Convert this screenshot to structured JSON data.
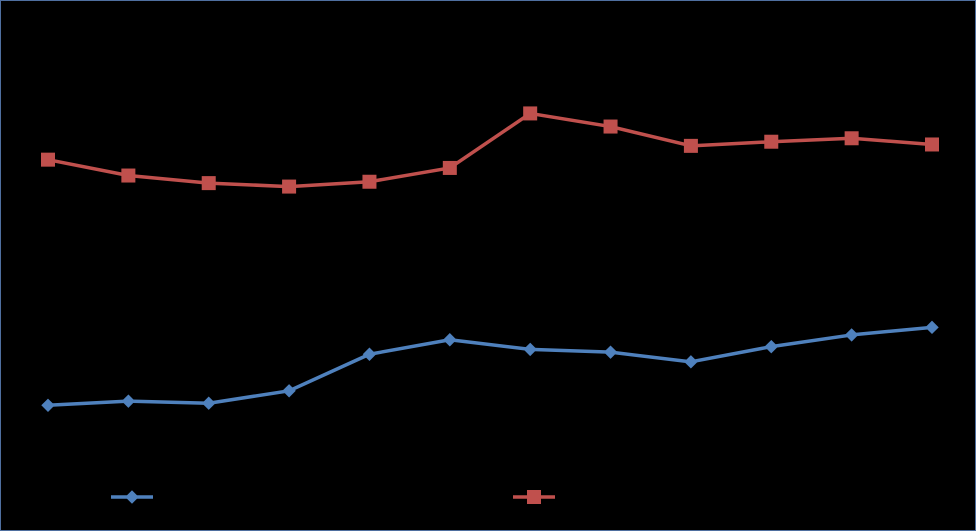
{
  "chart_data": {
    "type": "line",
    "title": "",
    "xlabel": "",
    "ylabel": "",
    "categories": [
      "",
      "",
      "",
      "",
      "",
      "",
      "",
      "",
      "",
      "",
      "",
      ""
    ],
    "ylim": [
      0,
      5
    ],
    "y_ticks": [
      0,
      1,
      2,
      3,
      4,
      5
    ],
    "grid": false,
    "legend_position": "bottom",
    "series": [
      {
        "name": "",
        "color": "#4f81bd",
        "marker": "diamond",
        "values": [
          0.3,
          0.36,
          0.33,
          0.51,
          1.04,
          1.25,
          1.11,
          1.07,
          0.93,
          1.15,
          1.32,
          1.43
        ]
      },
      {
        "name": "",
        "color": "#c0504d",
        "marker": "square",
        "values": [
          3.86,
          3.63,
          3.52,
          3.47,
          3.54,
          3.74,
          4.53,
          4.34,
          4.06,
          4.12,
          4.17,
          4.08
        ]
      }
    ]
  }
}
